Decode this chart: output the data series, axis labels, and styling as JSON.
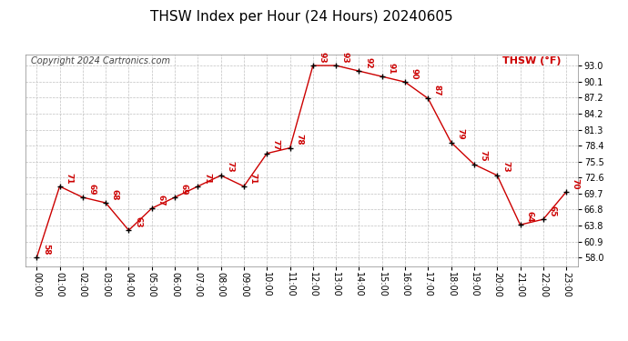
{
  "title": "THSW Index per Hour (24 Hours) 20240605",
  "copyright": "Copyright 2024 Cartronics.com",
  "legend_label": "THSW (°F)",
  "hours": [
    "00:00",
    "01:00",
    "02:00",
    "03:00",
    "04:00",
    "05:00",
    "06:00",
    "07:00",
    "08:00",
    "09:00",
    "10:00",
    "11:00",
    "12:00",
    "13:00",
    "14:00",
    "15:00",
    "16:00",
    "17:00",
    "18:00",
    "19:00",
    "20:00",
    "21:00",
    "22:00",
    "23:00"
  ],
  "values": [
    58,
    71,
    69,
    68,
    63,
    67,
    69,
    71,
    73,
    71,
    77,
    78,
    93,
    93,
    92,
    91,
    90,
    87,
    79,
    75,
    73,
    64,
    65,
    70
  ],
  "line_color": "#cc0000",
  "marker_color": "#000000",
  "grid_color": "#c0c0c0",
  "bg_color": "#ffffff",
  "title_color": "#000000",
  "label_color": "#cc0000",
  "yticks": [
    58.0,
    60.9,
    63.8,
    66.8,
    69.7,
    72.6,
    75.5,
    78.4,
    81.3,
    84.2,
    87.2,
    90.1,
    93.0
  ],
  "ylim": [
    56.5,
    95.0
  ],
  "title_fontsize": 11,
  "copyright_fontsize": 7,
  "tick_fontsize": 7,
  "legend_fontsize": 8,
  "value_fontsize": 6.5
}
